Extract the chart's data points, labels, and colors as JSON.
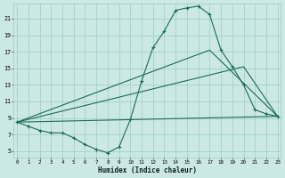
{
  "xlabel": "Humidex (Indice chaleur)",
  "bg_color": "#cce8e4",
  "grid_color": "#99cccc",
  "line_color": "#1a6b5a",
  "markersize": 3.0,
  "linewidth": 0.8,
  "xlim": [
    -0.3,
    23.3
  ],
  "ylim": [
    4.2,
    22.8
  ],
  "xticks": [
    0,
    1,
    2,
    3,
    4,
    5,
    6,
    7,
    8,
    9,
    10,
    11,
    12,
    13,
    14,
    15,
    16,
    17,
    18,
    19,
    20,
    21,
    22,
    23
  ],
  "yticks": [
    5,
    7,
    9,
    11,
    13,
    15,
    17,
    19,
    21
  ],
  "curve1_x": [
    0,
    1,
    2,
    3,
    4,
    5,
    6,
    7,
    8,
    9,
    10,
    11,
    12,
    13,
    14,
    15,
    16,
    17,
    18,
    19,
    20,
    21,
    22,
    23
  ],
  "curve1_y": [
    8.5,
    8.0,
    7.5,
    7.2,
    7.2,
    6.6,
    5.8,
    5.2,
    4.8,
    5.5,
    8.8,
    13.5,
    17.5,
    19.5,
    22.0,
    22.3,
    22.5,
    21.5,
    17.2,
    15.2,
    13.0,
    10.0,
    9.5,
    9.2
  ],
  "line1_x": [
    0,
    23
  ],
  "line1_y": [
    8.5,
    9.2
  ],
  "line2_x": [
    0,
    17,
    23
  ],
  "line2_y": [
    8.5,
    17.2,
    9.2
  ],
  "line3_x": [
    0,
    20,
    23
  ],
  "line3_y": [
    8.5,
    15.2,
    9.2
  ]
}
